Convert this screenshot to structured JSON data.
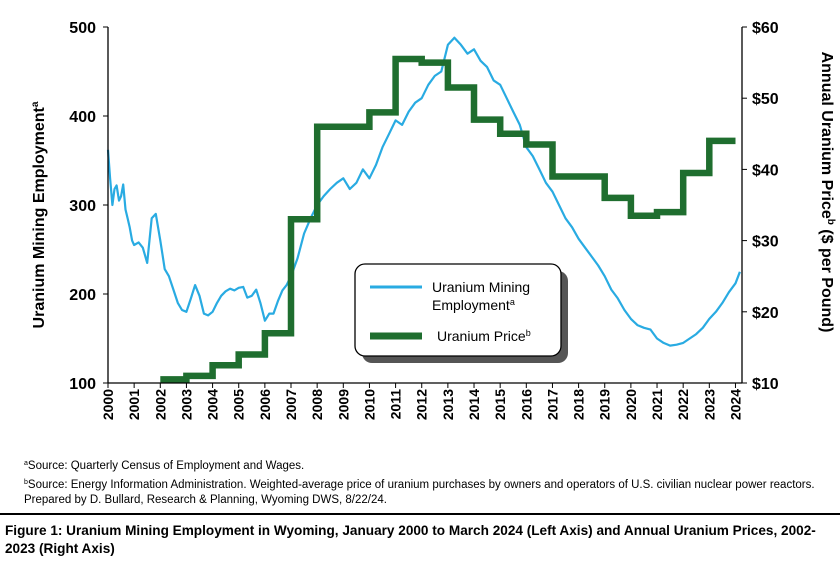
{
  "chart_data": {
    "type": "line",
    "x_range": [
      2000,
      2024.25
    ],
    "x_ticks": [
      "2000",
      "2001",
      "2002",
      "2003",
      "2004",
      "2005",
      "2006",
      "2007",
      "2008",
      "2009",
      "2010",
      "2011",
      "2012",
      "2013",
      "2014",
      "2015",
      "2016",
      "2017",
      "2018",
      "2019",
      "2020",
      "2021",
      "2022",
      "2023",
      "2024"
    ],
    "left_axis": {
      "label": "Uranium Mining Employment",
      "label_sup": "a",
      "ylim": [
        100,
        500
      ],
      "ticks": [
        "100",
        "200",
        "300",
        "400",
        "500"
      ]
    },
    "right_axis": {
      "label_prefix": "Annual Uranium Price",
      "label_sup": "b",
      "label_suffix": " ($ per Pound)",
      "ylim": [
        10,
        60
      ],
      "ticks": [
        "$10",
        "$20",
        "$30",
        "$40",
        "$50",
        "$60"
      ]
    },
    "series": [
      {
        "name": "Uranium Mining Employment",
        "name_line1": "Uranium Mining",
        "name_line2": "Employment",
        "name_sup": "a",
        "axis": "left",
        "color": "#29abe2",
        "x": [
          2000.0,
          2000.08,
          2000.17,
          2000.25,
          2000.33,
          2000.42,
          2000.5,
          2000.58,
          2000.67,
          2000.75,
          2000.83,
          2000.92,
          2001.0,
          2001.17,
          2001.33,
          2001.5,
          2001.67,
          2001.83,
          2002.0,
          2002.08,
          2002.17,
          2002.33,
          2002.5,
          2002.67,
          2002.83,
          2003.0,
          2003.17,
          2003.33,
          2003.5,
          2003.67,
          2003.83,
          2004.0,
          2004.17,
          2004.33,
          2004.5,
          2004.67,
          2004.83,
          2005.0,
          2005.17,
          2005.33,
          2005.5,
          2005.67,
          2005.83,
          2006.0,
          2006.17,
          2006.33,
          2006.5,
          2006.67,
          2006.83,
          2007.0,
          2007.25,
          2007.5,
          2007.75,
          2008.0,
          2008.25,
          2008.5,
          2008.75,
          2009.0,
          2009.25,
          2009.5,
          2009.75,
          2010.0,
          2010.25,
          2010.5,
          2010.75,
          2011.0,
          2011.25,
          2011.5,
          2011.75,
          2012.0,
          2012.25,
          2012.5,
          2012.75,
          2013.0,
          2013.25,
          2013.5,
          2013.75,
          2014.0,
          2014.25,
          2014.5,
          2014.75,
          2015.0,
          2015.25,
          2015.5,
          2015.75,
          2016.0,
          2016.25,
          2016.5,
          2016.75,
          2017.0,
          2017.25,
          2017.5,
          2017.75,
          2018.0,
          2018.25,
          2018.5,
          2018.75,
          2019.0,
          2019.25,
          2019.5,
          2019.75,
          2020.0,
          2020.25,
          2020.5,
          2020.75,
          2021.0,
          2021.25,
          2021.5,
          2021.75,
          2022.0,
          2022.25,
          2022.5,
          2022.75,
          2023.0,
          2023.25,
          2023.5,
          2023.75,
          2024.0,
          2024.17
        ],
        "values": [
          362,
          330,
          300,
          318,
          322,
          305,
          310,
          323,
          295,
          285,
          275,
          260,
          255,
          258,
          252,
          235,
          285,
          290,
          260,
          245,
          228,
          220,
          205,
          190,
          182,
          180,
          195,
          210,
          198,
          178,
          176,
          180,
          190,
          198,
          203,
          206,
          204,
          207,
          208,
          196,
          198,
          205,
          190,
          170,
          178,
          178,
          192,
          204,
          210,
          220,
          240,
          268,
          285,
          300,
          310,
          318,
          325,
          330,
          318,
          325,
          340,
          330,
          345,
          365,
          380,
          395,
          390,
          405,
          415,
          420,
          435,
          445,
          450,
          480,
          488,
          480,
          470,
          475,
          462,
          455,
          440,
          435,
          420,
          405,
          390,
          365,
          355,
          340,
          325,
          315,
          300,
          285,
          275,
          262,
          252,
          242,
          232,
          220,
          205,
          195,
          182,
          172,
          165,
          162,
          160,
          150,
          145,
          142,
          143,
          145,
          150,
          155,
          162,
          172,
          180,
          190,
          202,
          212,
          225
        ]
      },
      {
        "name": "Uranium Price",
        "name_sup": "b",
        "axis": "right",
        "color": "#1f6e2f",
        "step": true,
        "x": [
          2002,
          2003,
          2004,
          2005,
          2006,
          2007,
          2008,
          2009,
          2010,
          2011,
          2012,
          2013,
          2014,
          2015,
          2016,
          2017,
          2018,
          2019,
          2020,
          2021,
          2022,
          2023,
          2024
        ],
        "values": [
          10.5,
          11.0,
          12.5,
          14.0,
          17.0,
          33.0,
          46.0,
          46.0,
          48.0,
          55.5,
          55.0,
          51.5,
          47.0,
          45.0,
          43.5,
          39.0,
          39.0,
          36.0,
          33.5,
          34.0,
          39.5,
          44.0,
          44.0
        ]
      }
    ],
    "grid": false,
    "legend_position": "center-right"
  },
  "footnotes": {
    "a_marker": "a",
    "a_text": "Source: Quarterly Census of Employment and Wages.",
    "b_marker": "b",
    "b_text": "Source: Energy Information Administration. Weighted-average price of uranium purchases by owners and operators of U.S. civilian nuclear power reactors.",
    "prepared": "Prepared by D. Bullard, Research & Planning, Wyoming DWS, 8/22/24."
  },
  "caption": "Figure 1: Uranium Mining Employment in Wyoming, January 2000 to March 2024 (Left Axis) and Annual Uranium Prices, 2002-2023 (Right Axis)"
}
